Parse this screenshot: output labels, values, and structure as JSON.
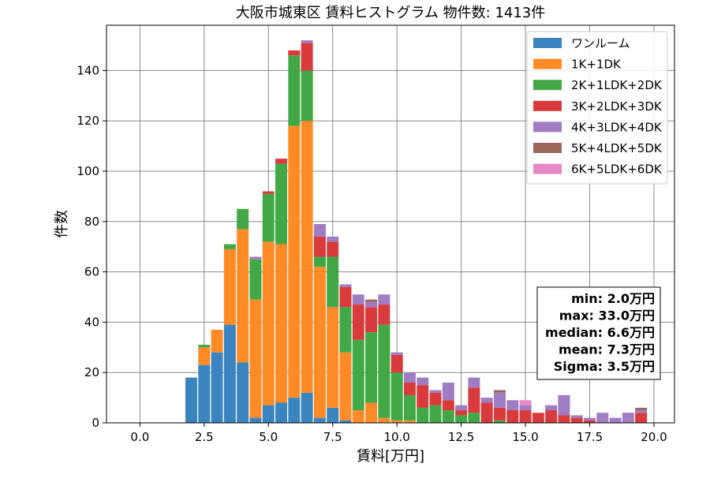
{
  "chart_data": {
    "type": "bar",
    "stacked": true,
    "title": "大阪市城東区 賃料ヒストグラム 物件数: 1413件",
    "xlabel": "賃料[万円]",
    "ylabel": "件数",
    "xlim": [
      -1.3,
      20.8
    ],
    "ylim": [
      0,
      158
    ],
    "xticks": [
      0.0,
      2.5,
      5.0,
      7.5,
      10.0,
      12.5,
      15.0,
      17.5,
      20.0
    ],
    "xtick_labels": [
      "0.0",
      "2.5",
      "5.0",
      "7.5",
      "10.0",
      "12.5",
      "15.0",
      "17.5",
      "20.0"
    ],
    "yticks": [
      0,
      20,
      40,
      60,
      80,
      100,
      120,
      140
    ],
    "ytick_labels": [
      "0",
      "20",
      "40",
      "60",
      "80",
      "100",
      "120",
      "140"
    ],
    "grid": true,
    "legend_position": "top-right",
    "bin_width": 0.5,
    "x": [
      2.0,
      2.5,
      3.0,
      3.5,
      4.0,
      4.5,
      5.0,
      5.5,
      6.0,
      6.5,
      7.0,
      7.5,
      8.0,
      8.5,
      9.0,
      9.5,
      10.0,
      10.5,
      11.0,
      11.5,
      12.0,
      12.5,
      13.0,
      13.5,
      14.0,
      14.5,
      15.0,
      15.5,
      16.0,
      16.5,
      17.0,
      17.5,
      18.0,
      18.5,
      19.0,
      19.5
    ],
    "series": [
      {
        "name": "ワンルーム",
        "color": "#3a85bf",
        "values": [
          18,
          23,
          28,
          39,
          24,
          2,
          7,
          8,
          10,
          12,
          2,
          6,
          1,
          0,
          0,
          0,
          0,
          0,
          0,
          0,
          0,
          0,
          0,
          0,
          0,
          0,
          0,
          0,
          0,
          0,
          0,
          0,
          0,
          0,
          0,
          0
        ]
      },
      {
        "name": "1K+1DK",
        "color": "#ff8b26",
        "values": [
          0,
          7,
          9,
          30,
          53,
          47,
          65,
          63,
          108,
          108,
          60,
          40,
          27,
          5,
          8,
          2,
          1,
          1,
          0,
          0,
          0,
          0,
          0,
          0,
          0,
          0,
          0,
          0,
          0,
          0,
          0,
          0,
          0,
          0,
          0,
          0
        ]
      },
      {
        "name": "2K+1LDK+2DK",
        "color": "#41a845",
        "values": [
          0,
          1,
          0,
          2,
          8,
          16,
          19,
          32,
          28,
          20,
          4,
          20,
          18,
          28,
          28,
          37,
          19,
          10,
          6,
          7,
          5,
          3,
          4,
          0,
          1,
          0,
          0,
          0,
          0,
          0,
          0,
          0,
          0,
          0,
          0,
          0
        ]
      },
      {
        "name": "3K+2LDK+3DK",
        "color": "#d93a3b",
        "values": [
          0,
          0,
          0,
          0,
          0,
          0,
          1,
          2,
          2,
          11,
          8,
          6,
          8,
          14,
          10,
          8,
          7,
          5,
          9,
          5,
          4,
          2,
          10,
          8,
          5,
          5,
          5,
          4,
          5,
          3,
          2,
          1,
          0,
          0,
          0,
          4
        ]
      },
      {
        "name": "4K+3LDK+4DK",
        "color": "#a07cc2",
        "values": [
          0,
          0,
          0,
          0,
          0,
          1,
          0,
          0,
          0,
          1,
          5,
          2,
          1,
          4,
          2,
          4,
          1,
          4,
          3,
          1,
          7,
          2,
          4,
          2,
          6,
          4,
          2,
          0,
          2,
          8,
          1,
          1,
          4,
          2,
          4,
          1
        ]
      },
      {
        "name": "5K+4LDK+5DK",
        "color": "#9b685a",
        "values": [
          0,
          0,
          0,
          0,
          0,
          0,
          0,
          0,
          0,
          0,
          0,
          0,
          0,
          0,
          1,
          0,
          0,
          0,
          0,
          0,
          0,
          0,
          0,
          0,
          1,
          0,
          0,
          0,
          0,
          0,
          0,
          0,
          0,
          0,
          0,
          1
        ]
      },
      {
        "name": "6K+5LDK+6DK",
        "color": "#e889c6",
        "values": [
          0,
          0,
          0,
          0,
          0,
          0,
          0,
          0,
          0,
          0,
          0,
          0,
          0,
          0,
          0,
          0,
          0,
          0,
          0,
          0,
          0,
          0,
          0,
          0,
          0,
          0,
          2,
          0,
          0,
          0,
          0,
          0,
          0,
          0,
          0,
          0
        ]
      }
    ],
    "stats_box": [
      "min: 2.0万円",
      "max: 33.0万円",
      "median: 6.6万円",
      "mean: 7.3万円",
      "Sigma: 3.5万円"
    ]
  }
}
